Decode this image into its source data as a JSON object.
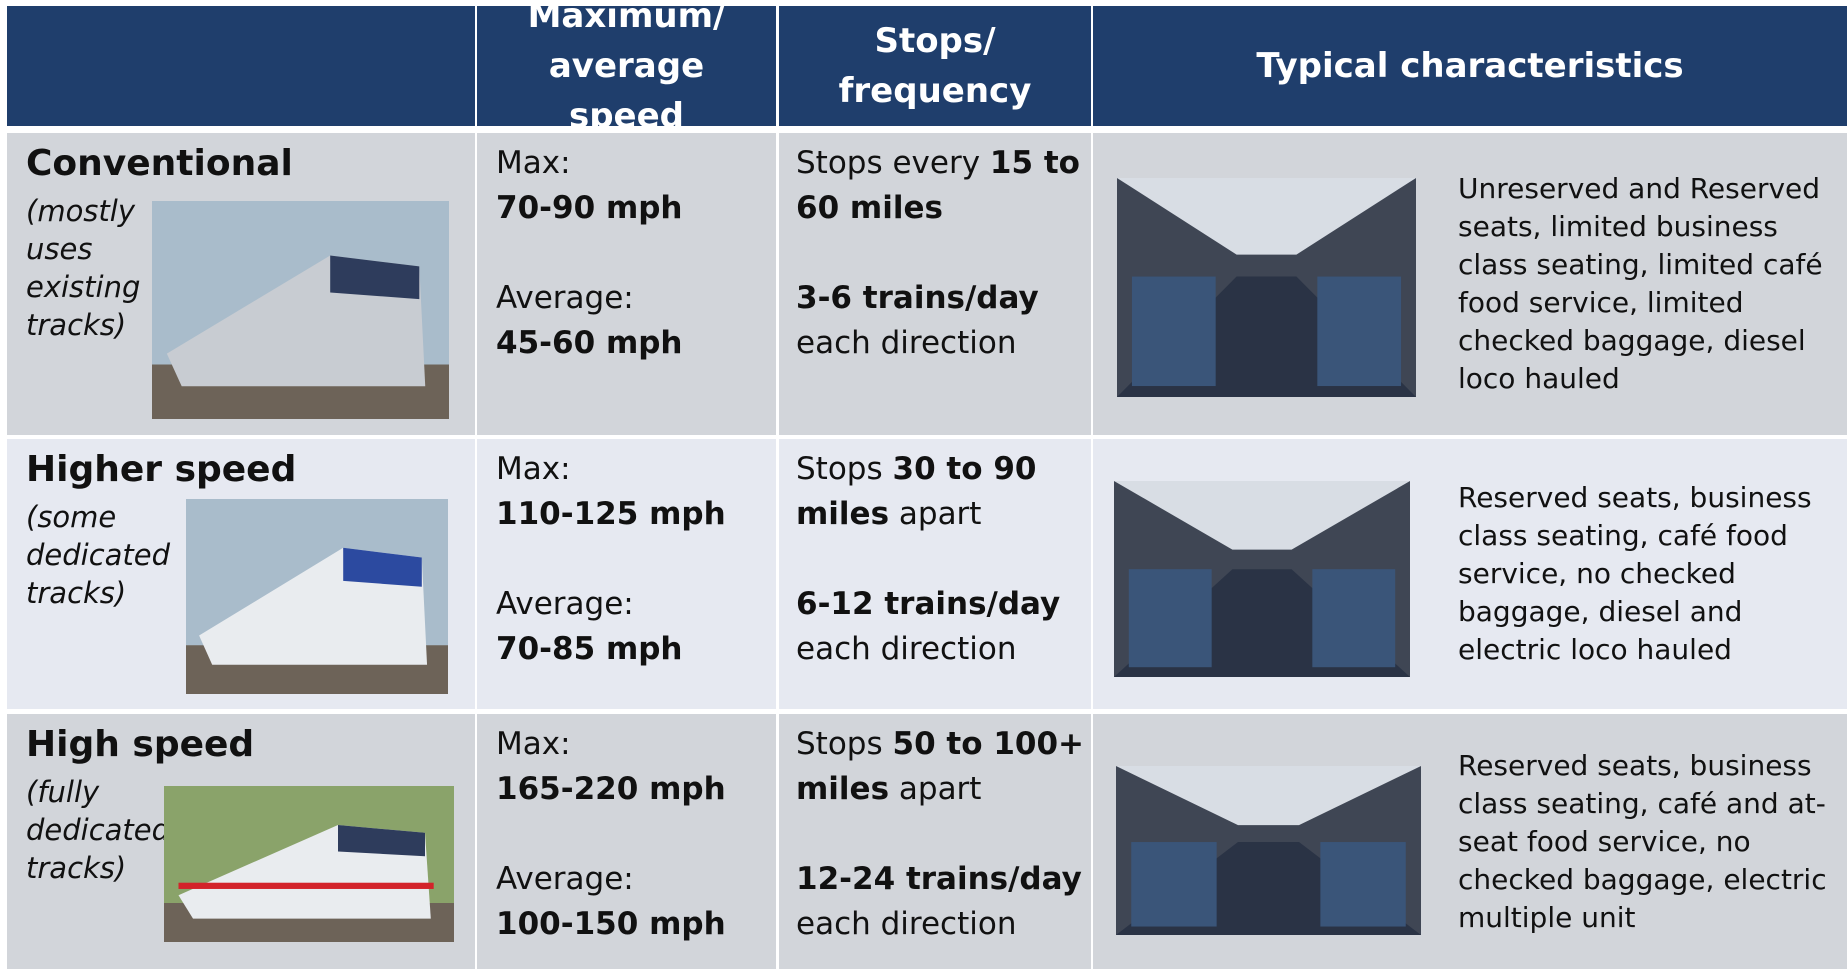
{
  "header": {
    "columns": [
      "Maximum/ average speed",
      "Stops/ frequency",
      "Typical characteristics"
    ]
  },
  "rows": [
    {
      "title": "Conventional",
      "note": [
        "(mostly",
        "uses",
        "existing",
        "tracks)"
      ],
      "max_label": "Max:",
      "max": "70-90 mph",
      "avg_label": "Average:",
      "avg": "45-60 mph",
      "stops_prefix": "Stops every",
      "stops_bold": "15 to 60 miles",
      "trains": "3-6 trains/day",
      "direction": "each direction",
      "characteristics": "Unreserved and Reserved seats, limited business class seating, limited café food service, limited checked baggage, diesel loco hauled"
    },
    {
      "title": "Higher speed",
      "note": [
        "(some",
        "dedicated",
        "tracks)"
      ],
      "max_label": "Max:",
      "max": "110-125 mph",
      "avg_label": "Average:",
      "avg": "70-85 mph",
      "stops_prefix": "Stops",
      "stops_bold": "30 to 90 miles",
      "stops_suffix": "apart",
      "trains": "6-12 trains/day",
      "direction": "each direction",
      "characteristics": "Reserved seats, business class seating, café food service, no checked baggage, diesel and electric loco hauled"
    },
    {
      "title": "High speed",
      "note": [
        "(fully",
        "dedicated",
        "tracks)"
      ],
      "max_label": "Max:",
      "max": "165-220 mph",
      "avg_label": "Average:",
      "avg": "100-150 mph",
      "stops_prefix": "Stops",
      "stops_bold": "50 to 100+ miles",
      "stops_suffix": "apart",
      "trains": "12-24 trains/day",
      "direction": "each direction",
      "characteristics": "Reserved seats, business class seating, café and at-seat food service, no checked baggage, electric multiple unit"
    }
  ]
}
